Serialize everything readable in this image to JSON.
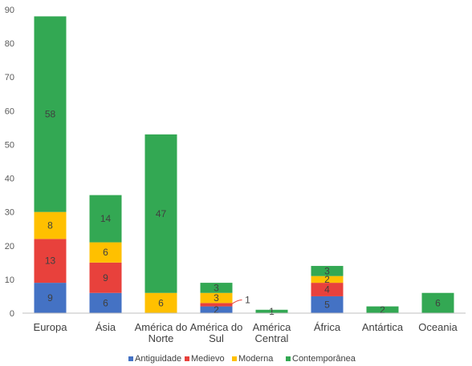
{
  "chart_data": {
    "type": "bar",
    "stacked": true,
    "categories": [
      [
        "Europa"
      ],
      [
        "Ásia"
      ],
      [
        "América do",
        "Norte"
      ],
      [
        "América do",
        "Sul"
      ],
      [
        "América",
        "Central"
      ],
      [
        "África"
      ],
      [
        "Antártica"
      ],
      [
        "Oceania"
      ]
    ],
    "series": [
      {
        "name": "Antiguidade",
        "color": "#4472C4",
        "values": [
          9,
          6,
          0,
          2,
          0,
          5,
          0,
          0
        ]
      },
      {
        "name": "Medievo",
        "color": "#E8413C",
        "values": [
          13,
          9,
          0,
          1,
          0,
          4,
          0,
          0
        ]
      },
      {
        "name": "Moderna",
        "color": "#FFC000",
        "values": [
          8,
          6,
          6,
          3,
          0,
          2,
          0,
          0
        ]
      },
      {
        "name": "Contemporânea",
        "color": "#33A853",
        "values": [
          58,
          14,
          47,
          3,
          1,
          3,
          2,
          6
        ]
      }
    ],
    "data_labels": [
      [
        "9",
        "13",
        "8",
        "58"
      ],
      [
        "6",
        "9",
        "6",
        "14"
      ],
      [
        "",
        "",
        "6",
        "47"
      ],
      [
        "2",
        "1",
        "3",
        "3"
      ],
      [
        "",
        "",
        "",
        "1"
      ],
      [
        "5",
        "4",
        "2",
        "3"
      ],
      [
        "",
        "",
        "",
        "2"
      ],
      [
        "",
        "",
        "",
        "6"
      ]
    ],
    "ylim": [
      0,
      90
    ],
    "yticks": [
      "0",
      "10",
      "20",
      "30",
      "40",
      "50",
      "60",
      "70",
      "80",
      "90"
    ],
    "title": "",
    "xlabel": "",
    "ylabel": "",
    "grid": false,
    "legend_position": "bottom"
  }
}
